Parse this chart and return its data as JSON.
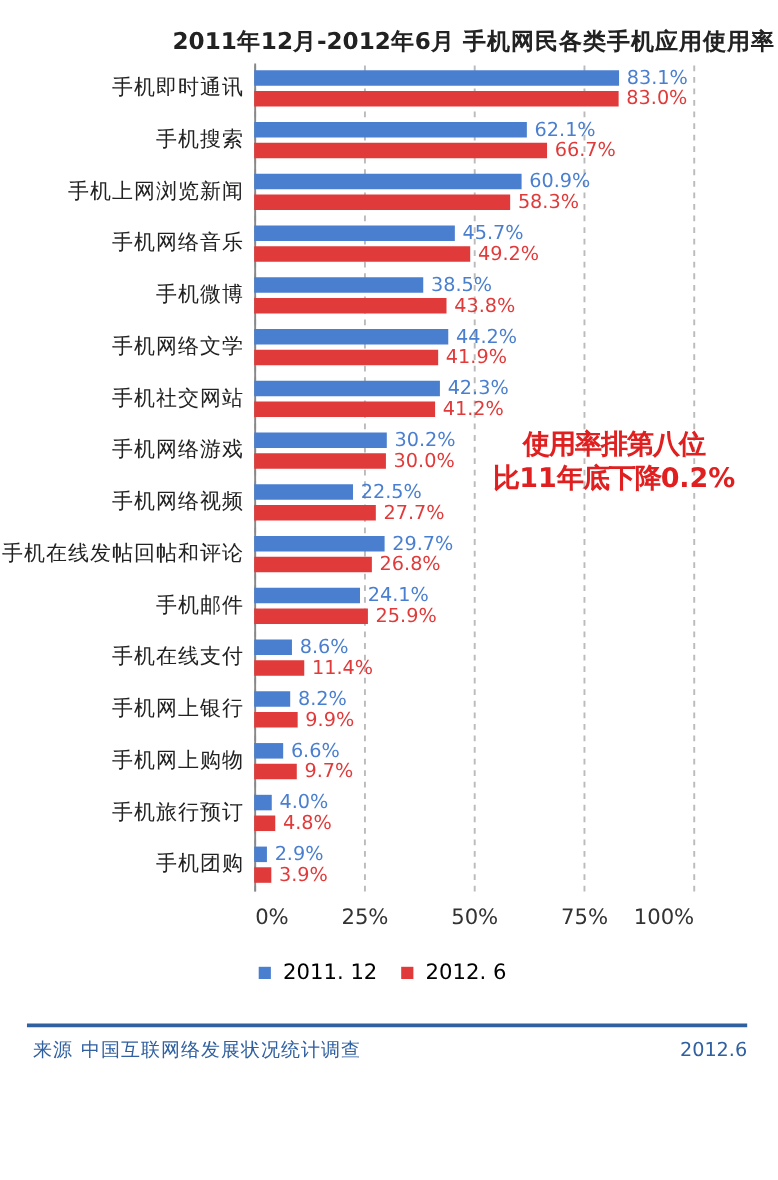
{
  "chart_data": {
    "type": "bar",
    "orientation": "horizontal",
    "title": "2011年12月-2012年6月 手机网民各类手机应用使用率",
    "categories": [
      "手机即时通讯",
      "手机搜索",
      "手机上网浏览新闻",
      "手机网络音乐",
      "手机微博",
      "手机网络文学",
      "手机社交网站",
      "手机网络游戏",
      "手机网络视频",
      "手机在线发帖回帖和评论",
      "手机邮件",
      "手机在线支付",
      "手机网上银行",
      "手机网上购物",
      "手机旅行预订",
      "手机团购"
    ],
    "series": [
      {
        "name": "2011. 12",
        "color": "#4a7fcf",
        "values": [
          83.1,
          62.1,
          60.9,
          45.7,
          38.5,
          44.2,
          42.3,
          30.2,
          22.5,
          29.7,
          24.1,
          8.6,
          8.2,
          6.6,
          4.0,
          2.9
        ],
        "value_labels": [
          "83.1%",
          "62.1%",
          "60.9%",
          "45.7%",
          "38.5%",
          "44.2%",
          "42.3%",
          "30.2%",
          "22.5%",
          "29.7%",
          "24.1%",
          "8.6%",
          "8.2%",
          "6.6%",
          "4.0%",
          "2.9%"
        ]
      },
      {
        "name": "2012. 6",
        "color": "#e03a3a",
        "values": [
          83.0,
          66.7,
          58.3,
          49.2,
          43.8,
          41.9,
          41.2,
          30.0,
          27.7,
          26.8,
          25.9,
          11.4,
          9.9,
          9.7,
          4.8,
          3.9
        ],
        "value_labels": [
          "83.0%",
          "66.7%",
          "58.3%",
          "49.2%",
          "43.8%",
          "41.9%",
          "41.2%",
          "30.0%",
          "27.7%",
          "26.8%",
          "25.9%",
          "11.4%",
          "9.9%",
          "9.7%",
          "4.8%",
          "3.9%"
        ]
      }
    ],
    "xlim": [
      0,
      100
    ],
    "xticks": [
      {
        "value": 0,
        "label": "0%"
      },
      {
        "value": 25,
        "label": "25%"
      },
      {
        "value": 50,
        "label": "50%"
      },
      {
        "value": 75,
        "label": "75%"
      },
      {
        "value": 100,
        "label": "100%"
      }
    ],
    "grid": "x",
    "legend": "bottom",
    "annotations": [
      "使用率排第八位",
      "比11年底下降0.2%",
      "来源",
      "中国互联网络发展状况统计调查",
      "2012.6"
    ]
  }
}
